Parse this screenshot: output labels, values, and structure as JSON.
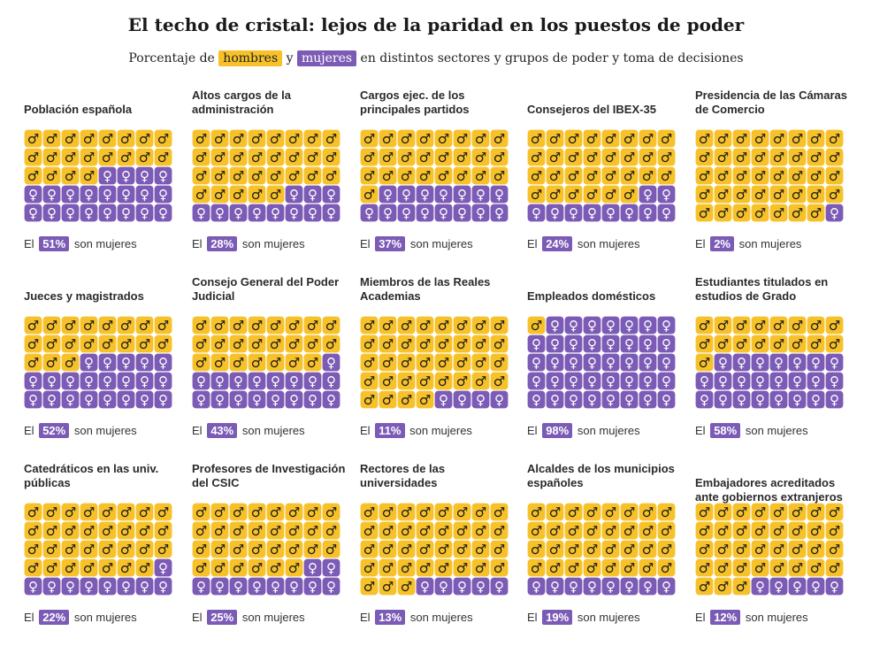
{
  "title": "El techo de cristal: lejos de la paridad en los puestos de poder",
  "subtitle": {
    "prefix": "Porcentaje de",
    "men_label": "hombres",
    "conj": "y",
    "women_label": "mujeres",
    "suffix": "en distintos sectores y grupos de poder y toma de decisiones"
  },
  "colors": {
    "men": "#f7c12a",
    "women": "#7b5bb5"
  },
  "icons": {
    "men": "male-symbol-icon",
    "women": "female-symbol-icon"
  },
  "caption_parts": {
    "prefix": "El",
    "suffix": "son mujeres"
  },
  "chart_data": {
    "type": "waffle",
    "grid": {
      "rows": 5,
      "cols": 8,
      "units": 40
    },
    "series_names": [
      "hombres",
      "mujeres"
    ],
    "panels": [
      {
        "label": "Población española",
        "women_pct": 51,
        "women_label": "51%"
      },
      {
        "label": "Altos cargos de la administración",
        "women_pct": 28,
        "women_label": "28%"
      },
      {
        "label": "Cargos ejec. de los principales partidos",
        "women_pct": 37,
        "women_label": "37%"
      },
      {
        "label": "Consejeros del IBEX-35",
        "women_pct": 24,
        "women_label": "24%"
      },
      {
        "label": "Presidencia de las Cámaras de Comercio",
        "women_pct": 2,
        "women_label": "2%"
      },
      {
        "label": "Jueces y magistrados",
        "women_pct": 52,
        "women_label": "52%"
      },
      {
        "label": "Consejo General del Poder Judicial",
        "women_pct": 43,
        "women_label": "43%"
      },
      {
        "label": "Miembros de las Reales Academias",
        "women_pct": 11,
        "women_label": "11%"
      },
      {
        "label": "Empleados domésticos",
        "women_pct": 98,
        "women_label": "98%"
      },
      {
        "label": "Estudiantes titulados en estudios de Grado",
        "women_pct": 58,
        "women_label": "58%"
      },
      {
        "label": "Catedráticos en las univ. públicas",
        "women_pct": 22,
        "women_label": "22%"
      },
      {
        "label": "Profesores de Investigación del CSIC",
        "women_pct": 25,
        "women_label": "25%"
      },
      {
        "label": "Rectores de las universidades",
        "women_pct": 13,
        "women_label": "13%"
      },
      {
        "label": "Alcaldes de los municipios españoles",
        "women_pct": 19,
        "women_label": "19%"
      },
      {
        "label": "Embajadores acreditados ante gobiernos extranjeros",
        "women_pct": 12,
        "women_label": "12%"
      }
    ]
  }
}
